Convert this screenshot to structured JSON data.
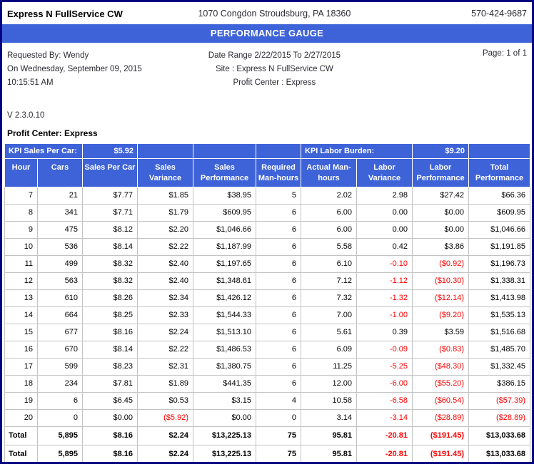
{
  "letterhead": {
    "business_name": "Express N FullService CW",
    "address": "1070 Congdon Stroudsburg, PA 18360",
    "phone": "570-424-9687"
  },
  "title_bar": "PERFORMANCE GAUGE",
  "meta": {
    "requested_by": "Requested By: Wendy",
    "requested_on": "On Wednesday, September 09, 2015",
    "requested_time": "10:15:51 AM",
    "date_range": "Date Range 2/22/2015 To 2/27/2015",
    "site": "Site : Express N FullService CW",
    "profit_center": "Profit Center : Express",
    "page": "Page: 1 of 1"
  },
  "version": "V 2.3.0.10",
  "section_title": "Profit Center: Express",
  "table": {
    "kpi": {
      "sales_per_car_label": "KPI Sales Per Car:",
      "sales_per_car_value": "$5.92",
      "labor_burden_label": "KPI Labor Burden:",
      "labor_burden_value": "$9.20"
    },
    "columns": [
      "Hour",
      "Cars",
      "Sales Per Car",
      "Sales Variance",
      "Sales Performance",
      "Required Man-hours",
      "Actual Man-hours",
      "Labor Variance",
      "Labor Performance",
      "Total Performance"
    ],
    "rows": [
      [
        "7",
        "21",
        "$7.77",
        "$1.85",
        "$38.95",
        "5",
        "2.02",
        "2.98",
        "$27.42",
        "$66.36"
      ],
      [
        "8",
        "341",
        "$7.71",
        "$1.79",
        "$609.95",
        "6",
        "6.00",
        "0.00",
        "$0.00",
        "$609.95"
      ],
      [
        "9",
        "475",
        "$8.12",
        "$2.20",
        "$1,046.66",
        "6",
        "6.00",
        "0.00",
        "$0.00",
        "$1,046.66"
      ],
      [
        "10",
        "536",
        "$8.14",
        "$2.22",
        "$1,187.99",
        "6",
        "5.58",
        "0.42",
        "$3.86",
        "$1,191.85"
      ],
      [
        "11",
        "499",
        "$8.32",
        "$2.40",
        "$1,197.65",
        "6",
        "6.10",
        "-0.10",
        "($0.92)",
        "$1,196.73"
      ],
      [
        "12",
        "563",
        "$8.32",
        "$2.40",
        "$1,348.61",
        "6",
        "7.12",
        "-1.12",
        "($10.30)",
        "$1,338.31"
      ],
      [
        "13",
        "610",
        "$8.26",
        "$2.34",
        "$1,426.12",
        "6",
        "7.32",
        "-1.32",
        "($12.14)",
        "$1,413.98"
      ],
      [
        "14",
        "664",
        "$8.25",
        "$2.33",
        "$1,544.33",
        "6",
        "7.00",
        "-1.00",
        "($9.20)",
        "$1,535.13"
      ],
      [
        "15",
        "677",
        "$8.16",
        "$2.24",
        "$1,513.10",
        "6",
        "5.61",
        "0.39",
        "$3.59",
        "$1,516.68"
      ],
      [
        "16",
        "670",
        "$8.14",
        "$2.22",
        "$1,486.53",
        "6",
        "6.09",
        "-0.09",
        "($0.83)",
        "$1,485.70"
      ],
      [
        "17",
        "599",
        "$8.23",
        "$2.31",
        "$1,380.75",
        "6",
        "11.25",
        "-5.25",
        "($48.30)",
        "$1,332.45"
      ],
      [
        "18",
        "234",
        "$7.81",
        "$1.89",
        "$441.35",
        "6",
        "12.00",
        "-6.00",
        "($55.20)",
        "$386.15"
      ],
      [
        "19",
        "6",
        "$6.45",
        "$0.53",
        "$3.15",
        "4",
        "10.58",
        "-6.58",
        "($60.54)",
        "($57.39)"
      ],
      [
        "20",
        "0",
        "$0.00",
        "($5.92)",
        "$0.00",
        "0",
        "3.14",
        "-3.14",
        "($28.89)",
        "($28.89)"
      ]
    ],
    "totals": [
      [
        "Total",
        "5,895",
        "$8.16",
        "$2.24",
        "$13,225.13",
        "75",
        "95.81",
        "-20.81",
        "($191.45)",
        "$13,033.68"
      ],
      [
        "Total",
        "5,895",
        "$8.16",
        "$2.24",
        "$13,225.13",
        "75",
        "95.81",
        "-20.81",
        "($191.45)",
        "$13,033.68"
      ]
    ]
  },
  "colors": {
    "accent_blue": "#3e63d8",
    "border_navy": "#000080",
    "negative_red": "#ff0000"
  }
}
